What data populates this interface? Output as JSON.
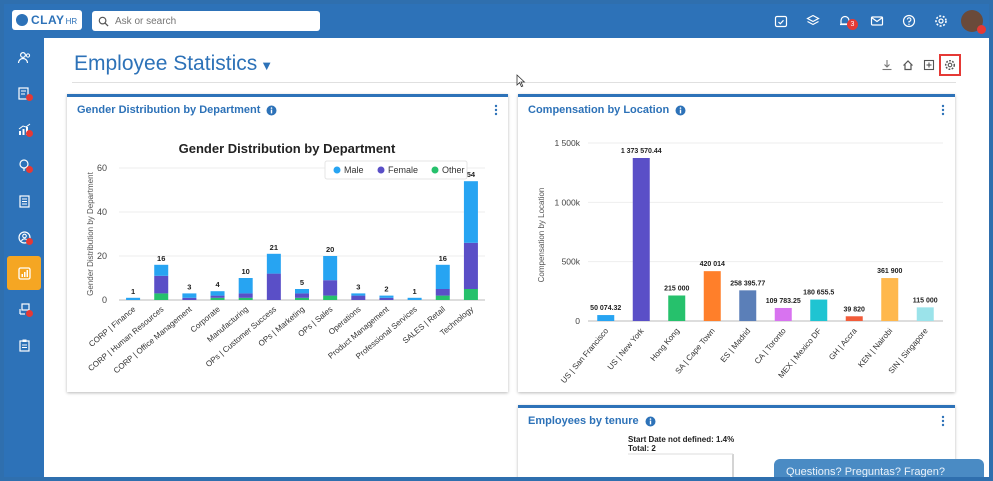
{
  "app": {
    "logo_text": "CLAY",
    "logo_sub": "HR",
    "search_placeholder": "Ask or search",
    "notification_count": "3",
    "page_title": "Employee Statistics"
  },
  "header_icons": [
    "calendar-check-icon",
    "layers-icon",
    "bell-icon",
    "mail-icon",
    "help-icon",
    "settings-icon"
  ],
  "sidebar_items": [
    {
      "name": "people-icon",
      "dot": false
    },
    {
      "name": "timesheet-icon",
      "dot": true
    },
    {
      "name": "analytics-icon",
      "dot": true
    },
    {
      "name": "goals-icon",
      "dot": true
    },
    {
      "name": "documents-icon",
      "dot": false
    },
    {
      "name": "profile-icon",
      "dot": true
    },
    {
      "name": "reports-icon",
      "dot": false,
      "active": true
    },
    {
      "name": "org-icon",
      "dot": true
    },
    {
      "name": "clipboard-icon",
      "dot": false
    }
  ],
  "colors": {
    "brand": "#2d72b8",
    "male": "#27a4f2",
    "female": "#5a4fc7",
    "other": "#26c16c",
    "accent": "#f5a623"
  },
  "cards": {
    "gender_title": "Gender Distribution by Department",
    "comp_title": "Compensation by Location",
    "tenure_title": "Employees by tenure"
  },
  "chat_label": "Questions? Preguntas? Fragen?",
  "chart_data": [
    {
      "type": "bar",
      "stacked": true,
      "title": "Gender Distribution by Department",
      "ylabel": "Gender Distribution by Department",
      "ylim": [
        0,
        60
      ],
      "yticks": [
        0,
        20,
        40,
        60
      ],
      "legend_position": "top-right",
      "categories": [
        "CORP | Finance",
        "CORP | Human Resources",
        "CORP | Office Management",
        "Corporate",
        "Manufacturing",
        "OPs | Customer Success",
        "OPs | Marketing",
        "OPs | Sales",
        "Operations",
        "Product Management",
        "Professional Services",
        "SALES | Retail",
        "Technology"
      ],
      "totals": [
        1,
        16,
        3,
        4,
        10,
        21,
        5,
        20,
        3,
        2,
        1,
        16,
        54
      ],
      "series": [
        {
          "name": "Male",
          "values": [
            1,
            5,
            2,
            2,
            7,
            9,
            2,
            11,
            1,
            1,
            1,
            11,
            28
          ]
        },
        {
          "name": "Female",
          "values": [
            0,
            8,
            1,
            1,
            2,
            12,
            2,
            7,
            2,
            1,
            0,
            3,
            21
          ]
        },
        {
          "name": "Other",
          "values": [
            0,
            3,
            0,
            1,
            1,
            0,
            1,
            2,
            0,
            0,
            0,
            2,
            5
          ]
        }
      ]
    },
    {
      "type": "bar",
      "title": "",
      "ylabel": "Compensation by Location",
      "ylim": [
        0,
        1500000
      ],
      "yticks": [
        {
          "v": 0,
          "label": "0"
        },
        {
          "v": 500000,
          "label": "500k"
        },
        {
          "v": 1000000,
          "label": "1 000k"
        },
        {
          "v": 1500000,
          "label": "1 500k"
        }
      ],
      "categories": [
        "US | San Francisco",
        "US | New York",
        "Hong Kong",
        "SA | Cape Town",
        "ES | Madrid",
        "CA | Toronto",
        "MEX | Mexico DF",
        "GH | Accra",
        "KEN | Nairobi",
        "SIN | Singapore"
      ],
      "values": [
        50074.32,
        1373570.44,
        215000,
        420014,
        258395.77,
        109783.25,
        180655.5,
        39820,
        361900,
        115000
      ],
      "labels": [
        "50 074.32",
        "1 373 570.44",
        "215 000",
        "420 014",
        "258 395.77",
        "109 783.25",
        "180 655.5",
        "39 820",
        "361 900",
        "115 000"
      ],
      "colors": [
        "#27a4f2",
        "#5a4fc7",
        "#26c16c",
        "#ff7f2a",
        "#5b7fb8",
        "#d873f0",
        "#1fc4d2",
        "#f25c3a",
        "#ffb84d",
        "#9be3ea"
      ]
    },
    {
      "type": "pie",
      "title": "",
      "annotations": [
        "Start Date not defined: 1.4%",
        "Total: 2"
      ]
    }
  ]
}
